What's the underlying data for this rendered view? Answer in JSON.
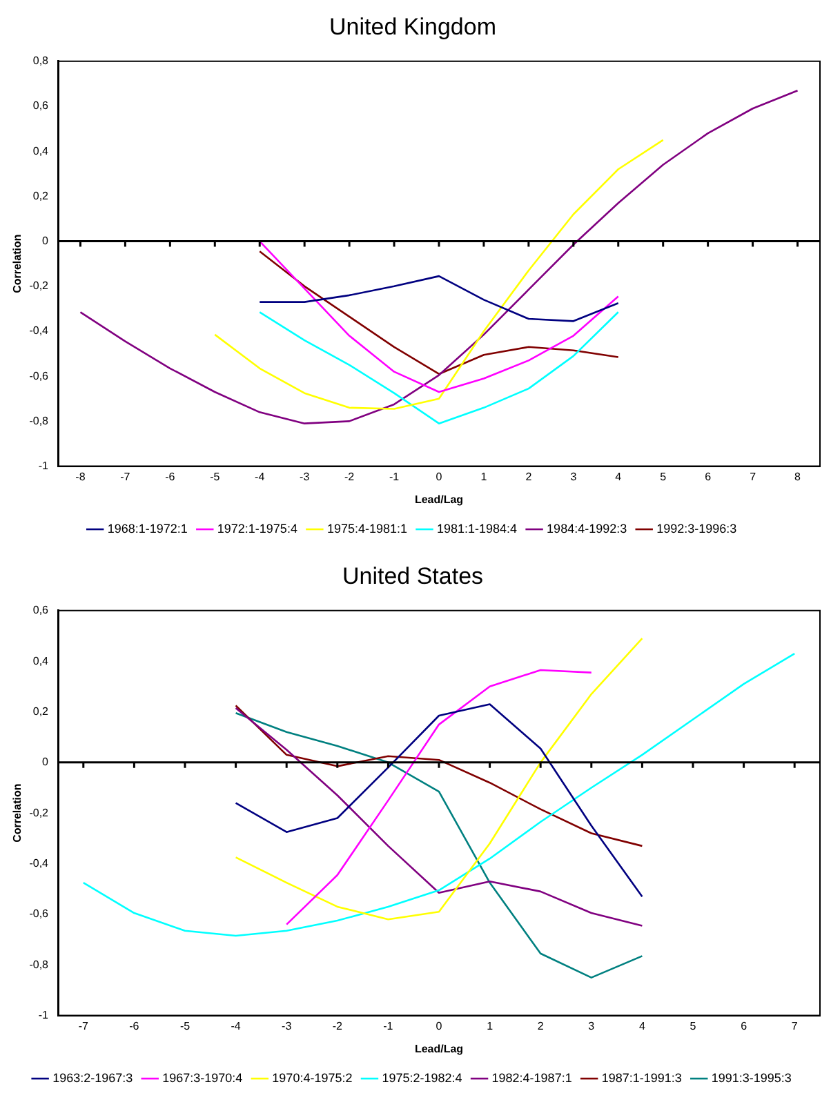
{
  "chart_data": [
    {
      "type": "line",
      "title": "United Kingdom",
      "xlabel": "Lead/Lag",
      "ylabel": "Correlation",
      "xlim": [
        -8.5,
        8.5
      ],
      "xticks": [
        -8,
        -7,
        -6,
        -5,
        -4,
        -3,
        -2,
        -1,
        0,
        1,
        2,
        3,
        4,
        5,
        6,
        7,
        8
      ],
      "ylim": [
        -1,
        0.8
      ],
      "yticks": [
        {
          "value": -1,
          "label": "-1"
        },
        {
          "value": -0.8,
          "label": "-0,8"
        },
        {
          "value": -0.6,
          "label": "-0,6"
        },
        {
          "value": -0.4,
          "label": "-0,4"
        },
        {
          "value": -0.2,
          "label": "-0,2"
        },
        {
          "value": 0,
          "label": "0"
        },
        {
          "value": 0.2,
          "label": "0,2"
        },
        {
          "value": 0.4,
          "label": "0,4"
        },
        {
          "value": 0.6,
          "label": "0,6"
        },
        {
          "value": 0.8,
          "label": "0,8"
        }
      ],
      "grid": false,
      "legend": "bottom",
      "marker": "none",
      "line_style": "solid",
      "ref_lines": [
        {
          "axis": "y",
          "value": 0,
          "color": "#000000"
        }
      ],
      "series": [
        {
          "name": "1968:1-1972:1",
          "color": "#000080",
          "x": [
            -4,
            -3,
            -2,
            -1,
            0,
            1,
            2,
            3,
            4
          ],
          "values": [
            -0.27,
            -0.27,
            -0.24,
            -0.2,
            -0.155,
            -0.26,
            -0.345,
            -0.355,
            -0.275
          ]
        },
        {
          "name": "1972:1-1975:4",
          "color": "#ff00ff",
          "x": [
            -4,
            -3,
            -2,
            -1,
            0,
            1,
            2,
            3,
            4
          ],
          "values": [
            0.0,
            -0.21,
            -0.42,
            -0.58,
            -0.67,
            -0.61,
            -0.53,
            -0.42,
            -0.245
          ]
        },
        {
          "name": "1975:4-1981:1",
          "color": "#ffff00",
          "x": [
            -5,
            -4,
            -3,
            -2,
            -1,
            0,
            1,
            2,
            3,
            4,
            5
          ],
          "values": [
            -0.415,
            -0.565,
            -0.675,
            -0.74,
            -0.745,
            -0.7,
            -0.4,
            -0.13,
            0.12,
            0.32,
            0.45
          ]
        },
        {
          "name": "1981:1-1984:4",
          "color": "#00ffff",
          "x": [
            -4,
            -3,
            -2,
            -1,
            0,
            1,
            2,
            3,
            4
          ],
          "values": [
            -0.315,
            -0.44,
            -0.55,
            -0.675,
            -0.81,
            -0.74,
            -0.655,
            -0.51,
            -0.315
          ]
        },
        {
          "name": "1984:4-1992:3",
          "color": "#800080",
          "x": [
            -8,
            -7,
            -6,
            -5,
            -4,
            -3,
            -2,
            -1,
            0,
            1,
            2,
            3,
            4,
            5,
            6,
            7,
            8
          ],
          "values": [
            -0.315,
            -0.445,
            -0.565,
            -0.67,
            -0.76,
            -0.81,
            -0.8,
            -0.725,
            -0.595,
            -0.415,
            -0.215,
            -0.015,
            0.17,
            0.34,
            0.48,
            0.59,
            0.67
          ]
        },
        {
          "name": "1992:3-1996:3",
          "color": "#800000",
          "x": [
            -4,
            -3,
            -2,
            -1,
            0,
            1,
            2,
            3,
            4
          ],
          "values": [
            -0.045,
            -0.2,
            -0.335,
            -0.47,
            -0.59,
            -0.505,
            -0.47,
            -0.485,
            -0.515
          ]
        }
      ]
    },
    {
      "type": "line",
      "title": "United States",
      "xlabel": "Lead/Lag",
      "ylabel": "Correlation",
      "xlim": [
        -7.5,
        7.5
      ],
      "xticks": [
        -7,
        -6,
        -5,
        -4,
        -3,
        -2,
        -1,
        0,
        1,
        2,
        3,
        4,
        5,
        6,
        7
      ],
      "ylim": [
        -1,
        0.6
      ],
      "yticks": [
        {
          "value": -1,
          "label": "-1"
        },
        {
          "value": -0.8,
          "label": "-0,8"
        },
        {
          "value": -0.6,
          "label": "-0,6"
        },
        {
          "value": -0.4,
          "label": "-0,4"
        },
        {
          "value": -0.2,
          "label": "-0,2"
        },
        {
          "value": 0,
          "label": "0"
        },
        {
          "value": 0.2,
          "label": "0,2"
        },
        {
          "value": 0.4,
          "label": "0,4"
        },
        {
          "value": 0.6,
          "label": "0,6"
        }
      ],
      "grid": false,
      "legend": "bottom",
      "marker": "none",
      "line_style": "solid",
      "ref_lines": [
        {
          "axis": "y",
          "value": 0,
          "color": "#000000"
        }
      ],
      "series": [
        {
          "name": "1963:2-1967:3",
          "color": "#000080",
          "x": [
            -4,
            -3,
            -2,
            -1,
            0,
            1,
            2,
            3,
            4
          ],
          "values": [
            -0.16,
            -0.275,
            -0.22,
            -0.02,
            0.185,
            0.23,
            0.055,
            -0.25,
            -0.53
          ]
        },
        {
          "name": "1967:3-1970:4",
          "color": "#ff00ff",
          "x": [
            -3,
            -2,
            -1,
            0,
            1,
            2,
            3
          ],
          "values": [
            -0.64,
            -0.445,
            -0.15,
            0.15,
            0.3,
            0.365,
            0.355
          ]
        },
        {
          "name": "1970:4-1975:2",
          "color": "#ffff00",
          "x": [
            -4,
            -3,
            -2,
            -1,
            0,
            1,
            2,
            3,
            4
          ],
          "values": [
            -0.375,
            -0.475,
            -0.57,
            -0.62,
            -0.59,
            -0.32,
            0.0,
            0.27,
            0.49
          ]
        },
        {
          "name": "1975:2-1982:4",
          "color": "#00ffff",
          "x": [
            -7,
            -6,
            -5,
            -4,
            -3,
            -2,
            -1,
            0,
            1,
            2,
            3,
            4,
            5,
            6,
            7
          ],
          "values": [
            -0.475,
            -0.595,
            -0.665,
            -0.685,
            -0.665,
            -0.625,
            -0.57,
            -0.505,
            -0.38,
            -0.235,
            -0.1,
            0.03,
            0.17,
            0.31,
            0.43
          ]
        },
        {
          "name": "1982:4-1987:1",
          "color": "#800080",
          "x": [
            -4,
            -3,
            -2,
            -1,
            0,
            1,
            2,
            3,
            4
          ],
          "values": [
            0.215,
            0.05,
            -0.13,
            -0.33,
            -0.515,
            -0.47,
            -0.51,
            -0.595,
            -0.645
          ]
        },
        {
          "name": "1987:1-1991:3",
          "color": "#800000",
          "x": [
            -4,
            -3,
            -2,
            -1,
            0,
            1,
            2,
            3,
            4
          ],
          "values": [
            0.225,
            0.03,
            -0.015,
            0.025,
            0.01,
            -0.08,
            -0.185,
            -0.28,
            -0.33
          ]
        },
        {
          "name": "1991:3-1995:3",
          "color": "#008080",
          "x": [
            -4,
            -3,
            -2,
            -1,
            0,
            1,
            2,
            3,
            4
          ],
          "values": [
            0.195,
            0.12,
            0.065,
            0.0,
            -0.115,
            -0.475,
            -0.755,
            -0.85,
            -0.765
          ]
        }
      ]
    }
  ]
}
